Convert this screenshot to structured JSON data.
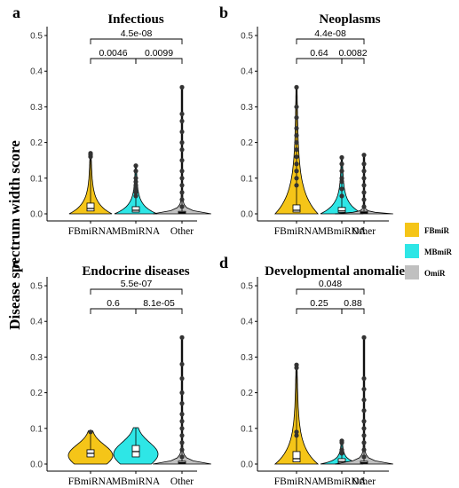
{
  "ylabel": "Disease spectrum width score",
  "legend": [
    {
      "name": "FBmiR",
      "color": "#F5C518"
    },
    {
      "name": "MBmiR",
      "color": "#2EE6E6"
    },
    {
      "name": "OmiR",
      "color": "#C0C0C0"
    }
  ],
  "chart_data": [
    {
      "type": "violin",
      "panel_letter": "a",
      "title": "Infectious",
      "categories": [
        "FBmiRNA",
        "MBmiRNA",
        "Other"
      ],
      "ylim": [
        0,
        0.52
      ],
      "yticks": [
        "0.0",
        "0.1",
        "0.2",
        "0.3",
        "0.4",
        "0.5"
      ],
      "series": [
        {
          "name": "FBmiRNA",
          "max": 0.17,
          "q1": 0.008,
          "median": 0.015,
          "q3": 0.03,
          "outliers": [
            0.16,
            0.165,
            0.17
          ]
        },
        {
          "name": "MBmiRNA",
          "max": 0.135,
          "q1": 0.005,
          "median": 0.01,
          "q3": 0.02,
          "outliers": [
            0.05,
            0.06,
            0.07,
            0.08,
            0.09,
            0.1,
            0.12,
            0.135
          ]
        },
        {
          "name": "Other",
          "max": 0.355,
          "q1": 0.002,
          "median": 0.004,
          "q3": 0.007,
          "outliers": [
            0.02,
            0.04,
            0.06,
            0.08,
            0.1,
            0.12,
            0.15,
            0.18,
            0.2,
            0.23,
            0.26,
            0.28,
            0.355
          ]
        }
      ],
      "comparisons": [
        {
          "label": "0.0046",
          "from": 0,
          "to": 1,
          "level": 1
        },
        {
          "label": "0.0099",
          "from": 1,
          "to": 2,
          "level": 1
        },
        {
          "label": "4.5e-08",
          "from": 0,
          "to": 2,
          "level": 2
        }
      ]
    },
    {
      "type": "violin",
      "panel_letter": "b",
      "title": "Neoplasms",
      "categories": [
        "FBmiRNA",
        "MBmiRNA",
        "Other"
      ],
      "ylim": [
        0,
        0.52
      ],
      "yticks": [
        "0.0",
        "0.1",
        "0.2",
        "0.3",
        "0.4",
        "0.5"
      ],
      "series": [
        {
          "name": "FBmiRNA",
          "max": 0.355,
          "q1": 0.005,
          "median": 0.01,
          "q3": 0.025,
          "outliers": [
            0.08,
            0.1,
            0.12,
            0.14,
            0.16,
            0.18,
            0.2,
            0.22,
            0.24,
            0.27,
            0.3,
            0.355
          ]
        },
        {
          "name": "MBmiRNA",
          "max": 0.158,
          "q1": 0.004,
          "median": 0.008,
          "q3": 0.018,
          "outliers": [
            0.05,
            0.07,
            0.09,
            0.1,
            0.12,
            0.14,
            0.158
          ]
        },
        {
          "name": "Other",
          "max": 0.165,
          "q1": 0.002,
          "median": 0.004,
          "q3": 0.007,
          "outliers": [
            0.02,
            0.04,
            0.06,
            0.08,
            0.1,
            0.12,
            0.14,
            0.165
          ]
        }
      ],
      "comparisons": [
        {
          "label": "0.64",
          "from": 0,
          "to": 1,
          "level": 1
        },
        {
          "label": "0.0082",
          "from": 1,
          "to": 2,
          "level": 1
        },
        {
          "label": "4.4e-08",
          "from": 0,
          "to": 2,
          "level": 2
        }
      ]
    },
    {
      "type": "violin",
      "panel_letter": "c",
      "title": "Endocrine diseases",
      "categories": [
        "FBmiRNA",
        "MBmiRNA",
        "Other"
      ],
      "ylim": [
        0,
        0.52
      ],
      "yticks": [
        "0.0",
        "0.1",
        "0.2",
        "0.3",
        "0.4",
        "0.5"
      ],
      "series": [
        {
          "name": "FBmiRNA",
          "max": 0.093,
          "q1": 0.02,
          "median": 0.03,
          "q3": 0.04,
          "outliers": [
            0.09
          ]
        },
        {
          "name": "MBmiRNA",
          "max": 0.102,
          "q1": 0.02,
          "median": 0.035,
          "q3": 0.052,
          "outliers": []
        },
        {
          "name": "Other",
          "max": 0.355,
          "q1": 0.002,
          "median": 0.004,
          "q3": 0.008,
          "outliers": [
            0.02,
            0.04,
            0.06,
            0.08,
            0.1,
            0.12,
            0.14,
            0.17,
            0.2,
            0.24,
            0.28,
            0.355
          ]
        }
      ],
      "comparisons": [
        {
          "label": "0.6",
          "from": 0,
          "to": 1,
          "level": 1
        },
        {
          "label": "8.1e-05",
          "from": 1,
          "to": 2,
          "level": 1
        },
        {
          "label": "5.5e-07",
          "from": 0,
          "to": 2,
          "level": 2
        }
      ]
    },
    {
      "type": "violin",
      "panel_letter": "d",
      "title": "Developmental anomalies",
      "categories": [
        "FBmiRNA",
        "MBmiRNA",
        "Other"
      ],
      "ylim": [
        0,
        0.52
      ],
      "yticks": [
        "0.0",
        "0.1",
        "0.2",
        "0.3",
        "0.4",
        "0.5"
      ],
      "series": [
        {
          "name": "FBmiRNA",
          "max": 0.278,
          "q1": 0.006,
          "median": 0.015,
          "q3": 0.035,
          "outliers": [
            0.08,
            0.09,
            0.27,
            0.278
          ]
        },
        {
          "name": "MBmiRNA",
          "max": 0.065,
          "q1": 0.003,
          "median": 0.007,
          "q3": 0.015,
          "outliers": [
            0.03,
            0.04,
            0.06,
            0.065
          ]
        },
        {
          "name": "Other",
          "max": 0.355,
          "q1": 0.002,
          "median": 0.004,
          "q3": 0.008,
          "outliers": [
            0.02,
            0.04,
            0.06,
            0.08,
            0.1,
            0.12,
            0.15,
            0.18,
            0.21,
            0.24,
            0.355
          ]
        }
      ],
      "comparisons": [
        {
          "label": "0.25",
          "from": 0,
          "to": 1,
          "level": 1
        },
        {
          "label": "0.88",
          "from": 1,
          "to": 2,
          "level": 1
        },
        {
          "label": "0.048",
          "from": 0,
          "to": 2,
          "level": 2
        }
      ]
    }
  ]
}
